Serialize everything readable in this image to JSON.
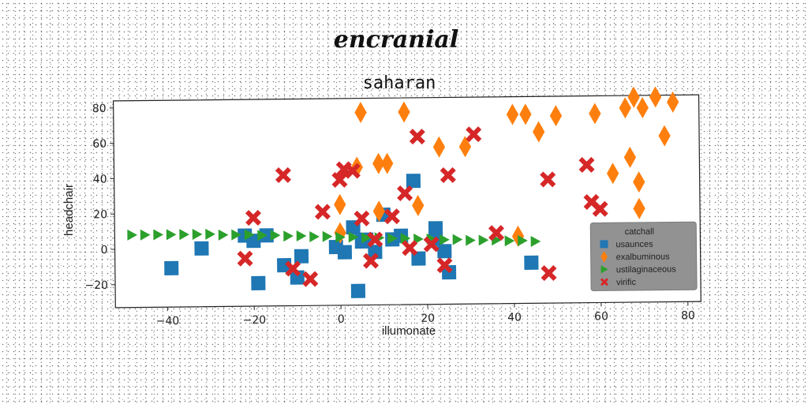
{
  "suptitle": "encranial",
  "chart_data": {
    "type": "scatter",
    "title": "saharan",
    "xlabel": "illumonate",
    "ylabel": "headchair",
    "xlim": [
      -52,
      83
    ],
    "ylim": [
      -33,
      84
    ],
    "xticks": [
      -40,
      -20,
      0,
      20,
      40,
      60,
      80
    ],
    "xtick_labels": [
      "−40",
      "−20",
      "0",
      "20",
      "40",
      "60",
      "80"
    ],
    "yticks": [
      -20,
      0,
      20,
      40,
      60,
      80
    ],
    "ytick_labels": [
      "−20",
      "0",
      "20",
      "40",
      "60",
      "80"
    ],
    "grid": false,
    "legend": {
      "title": "catchall",
      "placement": "lower-right"
    },
    "series": [
      {
        "name": "usaunces",
        "marker": "square",
        "color": "#1f77b4",
        "points": [
          [
            -39,
            -11
          ],
          [
            -32,
            0
          ],
          [
            -22,
            7
          ],
          [
            -20,
            4
          ],
          [
            -17,
            7
          ],
          [
            -19,
            -20
          ],
          [
            -13,
            -10
          ],
          [
            -10,
            -17
          ],
          [
            -9,
            -5
          ],
          [
            -1,
            0
          ],
          [
            1,
            -3
          ],
          [
            3,
            11
          ],
          [
            6,
            4
          ],
          [
            8,
            -3
          ],
          [
            10,
            18
          ],
          [
            12,
            4
          ],
          [
            14,
            6
          ],
          [
            17,
            37
          ],
          [
            18,
            -7
          ],
          [
            22,
            10
          ],
          [
            22,
            4
          ],
          [
            24,
            -3
          ],
          [
            25,
            -15
          ],
          [
            4,
            -25
          ],
          [
            44,
            -10
          ],
          [
            5,
            3
          ]
        ]
      },
      {
        "name": "exalbuminous",
        "marker": "diamond",
        "color": "#ff7f0e",
        "points": [
          [
            5,
            76
          ],
          [
            15,
            76
          ],
          [
            23,
            56
          ],
          [
            29,
            56
          ],
          [
            40,
            74
          ],
          [
            43,
            74
          ],
          [
            46,
            64
          ],
          [
            50,
            73
          ],
          [
            59,
            74
          ],
          [
            66,
            77
          ],
          [
            68,
            83
          ],
          [
            70,
            77
          ],
          [
            73,
            83
          ],
          [
            77,
            80
          ],
          [
            75,
            61
          ],
          [
            63,
            40
          ],
          [
            67,
            49
          ],
          [
            69,
            35
          ],
          [
            69,
            20
          ],
          [
            4,
            45
          ],
          [
            9,
            47
          ],
          [
            11,
            47
          ],
          [
            18,
            23
          ],
          [
            0,
            24
          ],
          [
            9,
            20
          ],
          [
            41,
            5
          ],
          [
            0,
            8
          ]
        ]
      },
      {
        "name": "ustilaginaceous",
        "marker": "triangle-right",
        "color": "#2ca02c",
        "points": [
          [
            -48,
            8
          ],
          [
            -45,
            8
          ],
          [
            -42,
            8
          ],
          [
            -39,
            8
          ],
          [
            -36,
            8
          ],
          [
            -33,
            8
          ],
          [
            -30,
            8
          ],
          [
            -27,
            7.5
          ],
          [
            -24,
            7.5
          ],
          [
            -21,
            7.5
          ],
          [
            -18,
            7
          ],
          [
            -15,
            7
          ],
          [
            -12,
            6.5
          ],
          [
            -9,
            6.5
          ],
          [
            -6,
            6
          ],
          [
            -3,
            6
          ],
          [
            0,
            5.5
          ],
          [
            3,
            5.5
          ],
          [
            6,
            5
          ],
          [
            9,
            5
          ],
          [
            12,
            4.5
          ],
          [
            15,
            4.5
          ],
          [
            18,
            4
          ],
          [
            21,
            4
          ],
          [
            24,
            3.5
          ],
          [
            27,
            3.5
          ],
          [
            30,
            3
          ],
          [
            33,
            3
          ],
          [
            36,
            3
          ],
          [
            39,
            2.5
          ],
          [
            42,
            2.5
          ],
          [
            45,
            2
          ]
        ]
      },
      {
        "name": "virific",
        "marker": "x-filled",
        "color": "#d62728",
        "points": [
          [
            -22,
            -6
          ],
          [
            -20,
            17
          ],
          [
            -13,
            41
          ],
          [
            -11,
            -12
          ],
          [
            -7,
            -18
          ],
          [
            -4,
            20
          ],
          [
            0,
            38
          ],
          [
            1,
            44
          ],
          [
            3,
            43
          ],
          [
            5,
            16
          ],
          [
            7,
            -8
          ],
          [
            8,
            4
          ],
          [
            12,
            17
          ],
          [
            15,
            30
          ],
          [
            16,
            -1
          ],
          [
            18,
            62
          ],
          [
            21,
            1
          ],
          [
            24,
            -11
          ],
          [
            25,
            40
          ],
          [
            31,
            63
          ],
          [
            36,
            7
          ],
          [
            48,
            37
          ],
          [
            48,
            -16
          ],
          [
            57,
            45
          ],
          [
            58,
            24
          ],
          [
            60,
            20
          ]
        ]
      }
    ]
  }
}
